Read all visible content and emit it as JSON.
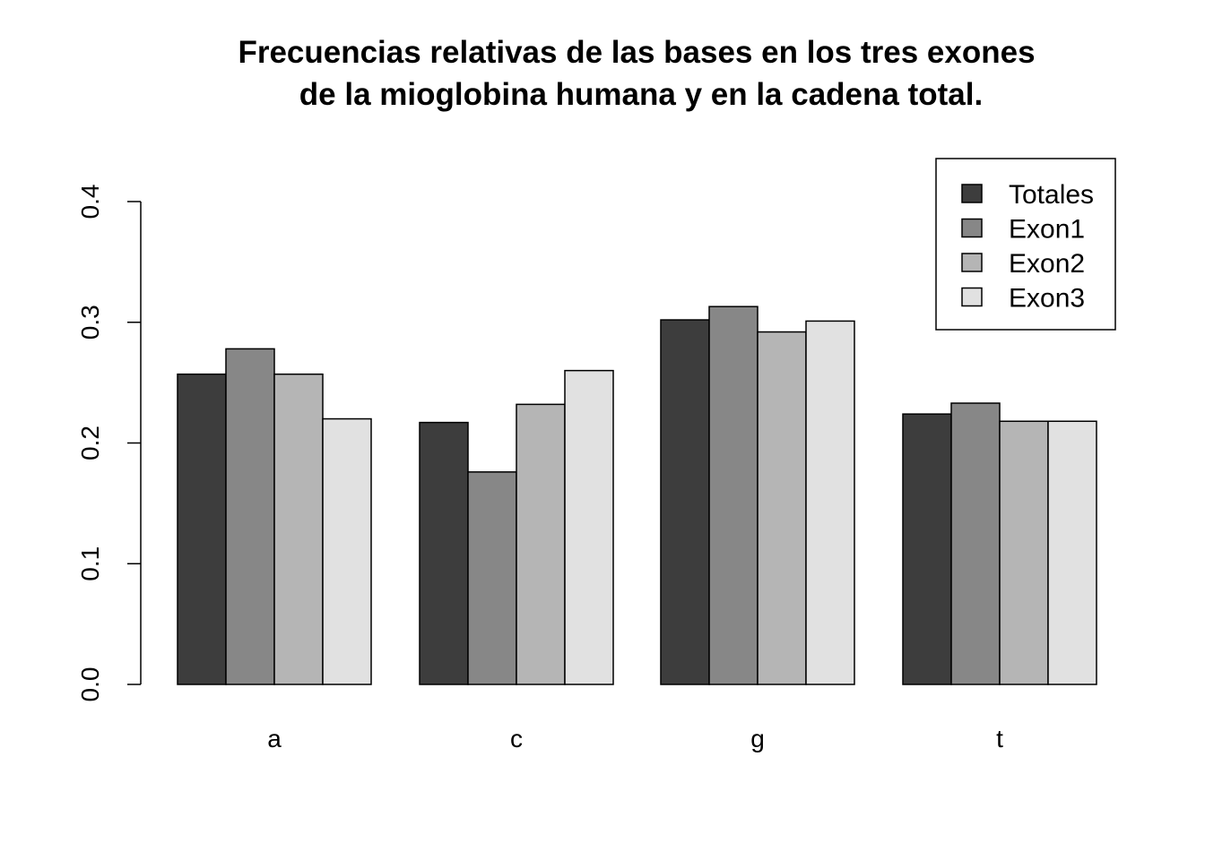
{
  "chart_data": {
    "type": "bar",
    "title": "Frecuencias relativas de las bases en los tres exones",
    "subtitle": "de la mioglobina humana y en la cadena total.",
    "xlabel": "",
    "ylabel": "",
    "categories": [
      "a",
      "c",
      "g",
      "t"
    ],
    "series": [
      {
        "name": "Totales",
        "values": [
          0.257,
          0.217,
          0.302,
          0.224
        ],
        "color": "#3d3d3d"
      },
      {
        "name": "Exon1",
        "values": [
          0.278,
          0.176,
          0.313,
          0.233
        ],
        "color": "#878787"
      },
      {
        "name": "Exon2",
        "values": [
          0.257,
          0.232,
          0.292,
          0.218
        ],
        "color": "#b5b5b5"
      },
      {
        "name": "Exon3",
        "values": [
          0.22,
          0.26,
          0.301,
          0.218
        ],
        "color": "#e1e1e1"
      }
    ],
    "ylim": [
      0,
      0.4
    ],
    "yticks": [
      "0.0",
      "0.1",
      "0.2",
      "0.3",
      "0.4"
    ],
    "grid": false,
    "legend_position": "top-right"
  }
}
